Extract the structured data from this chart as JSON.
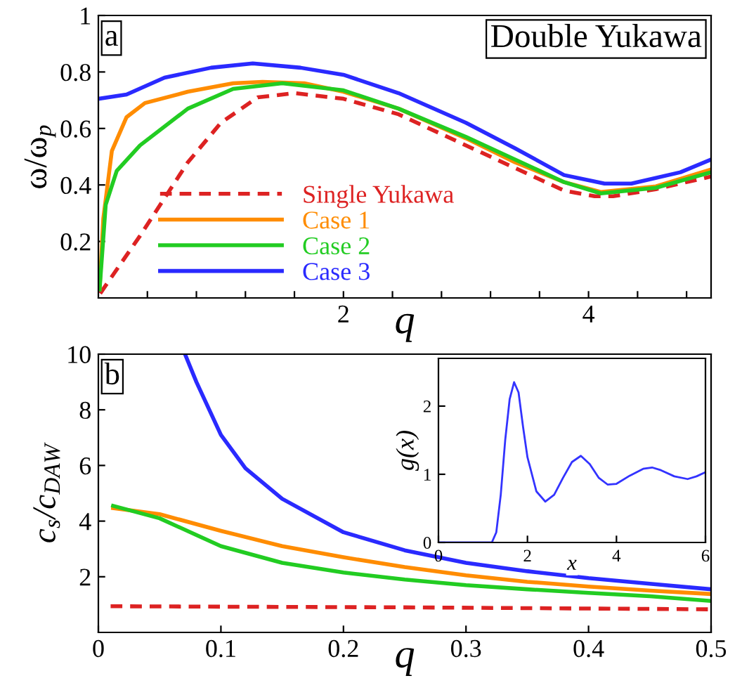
{
  "chart_data": [
    {
      "type": "line",
      "xlabel": "q",
      "ylabel": "ω/ω$_{p}$",
      "annotations": [
        "a",
        "Double Yukawa"
      ],
      "xlim": [
        0,
        5
      ],
      "ylim": [
        0,
        1
      ],
      "xticks": [
        {
          "value": 0.4,
          "label": null
        },
        {
          "value": 0.8,
          "label": null
        },
        {
          "value": 1.2,
          "label": null
        },
        {
          "value": 1.6,
          "label": null
        },
        2,
        {
          "value": 2.4,
          "label": null
        },
        {
          "value": 2.8,
          "label": null
        },
        {
          "value": 3.2,
          "label": null
        },
        {
          "value": 3.6,
          "label": null
        },
        4,
        {
          "value": 4.4,
          "label": null
        },
        {
          "value": 4.8,
          "label": null
        }
      ],
      "yticks": [
        0.2,
        0.4,
        0.6,
        0.8,
        1
      ],
      "legend": "bottom left",
      "grid": false,
      "series": [
        {
          "name": "Single Yukawa",
          "color": "#dd2222",
          "line_style": "dashed",
          "x": [
            0.015,
            0.34,
            0.73,
            1.0,
            1.3,
            1.6,
            2.0,
            2.45,
            3.0,
            3.4,
            3.8,
            4.05,
            4.2,
            4.55,
            5.0
          ],
          "values": [
            0.016,
            0.22,
            0.48,
            0.62,
            0.71,
            0.725,
            0.705,
            0.65,
            0.54,
            0.46,
            0.38,
            0.36,
            0.36,
            0.385,
            0.43
          ]
        },
        {
          "name": "Case 1",
          "color": "#ff8c00",
          "line_style": "solid",
          "x": [
            0.01,
            0.04,
            0.11,
            0.23,
            0.38,
            0.73,
            1.1,
            1.34,
            1.68,
            2.0,
            2.45,
            3.0,
            3.4,
            3.8,
            4.1,
            4.55,
            5.0
          ],
          "values": [
            0.03,
            0.28,
            0.52,
            0.64,
            0.69,
            0.73,
            0.76,
            0.765,
            0.76,
            0.73,
            0.67,
            0.565,
            0.48,
            0.41,
            0.375,
            0.395,
            0.455
          ]
        },
        {
          "name": "Case 2",
          "color": "#22cc22",
          "line_style": "solid",
          "x": [
            0.01,
            0.06,
            0.15,
            0.34,
            0.73,
            1.1,
            1.5,
            2.0,
            2.45,
            3.0,
            3.4,
            3.8,
            4.1,
            4.55,
            5.0
          ],
          "values": [
            0.03,
            0.33,
            0.45,
            0.54,
            0.67,
            0.74,
            0.76,
            0.735,
            0.67,
            0.57,
            0.49,
            0.41,
            0.37,
            0.39,
            0.445
          ]
        },
        {
          "name": "Case 3",
          "color": "#2a2aff",
          "line_style": "solid",
          "x": [
            0.0,
            0.23,
            0.54,
            0.92,
            1.26,
            1.65,
            2.0,
            2.45,
            3.0,
            3.4,
            3.8,
            4.13,
            4.35,
            4.75,
            5.0
          ],
          "values": [
            0.705,
            0.72,
            0.78,
            0.815,
            0.83,
            0.815,
            0.79,
            0.725,
            0.62,
            0.53,
            0.435,
            0.405,
            0.405,
            0.445,
            0.49
          ]
        }
      ]
    },
    {
      "type": "line",
      "xlabel": "q",
      "ylabel": "c$_{s}$/c$_{DAW}$",
      "annotations": [
        "b"
      ],
      "xlim": [
        0,
        0.5
      ],
      "ylim": [
        0,
        10
      ],
      "xticks": [
        0,
        0.1,
        0.2,
        0.3,
        0.4,
        0.5
      ],
      "yticks": [
        2,
        4,
        6,
        8,
        10
      ],
      "grid": false,
      "series": [
        {
          "color": "#dd2222",
          "line_style": "dashed",
          "x": [
            0.01,
            0.25,
            0.5
          ],
          "values": [
            0.94,
            0.9,
            0.83
          ]
        },
        {
          "color": "#ff8c00",
          "line_style": "solid",
          "x": [
            0.012,
            0.05,
            0.1,
            0.15,
            0.2,
            0.25,
            0.3,
            0.35,
            0.4,
            0.45,
            0.5
          ],
          "values": [
            4.47,
            4.25,
            3.65,
            3.1,
            2.7,
            2.35,
            2.05,
            1.82,
            1.65,
            1.5,
            1.38
          ]
        },
        {
          "color": "#22cc22",
          "line_style": "solid",
          "x": [
            0.012,
            0.05,
            0.1,
            0.15,
            0.2,
            0.25,
            0.3,
            0.35,
            0.4,
            0.45,
            0.5
          ],
          "values": [
            4.55,
            4.1,
            3.1,
            2.5,
            2.15,
            1.9,
            1.7,
            1.55,
            1.42,
            1.3,
            1.13
          ]
        },
        {
          "color": "#2a2aff",
          "line_style": "solid",
          "x": [
            0.0707,
            0.08,
            0.1,
            0.12,
            0.15,
            0.2,
            0.25,
            0.3,
            0.35,
            0.4,
            0.45,
            0.5
          ],
          "values": [
            10,
            9.0,
            7.1,
            5.9,
            4.8,
            3.6,
            2.95,
            2.5,
            2.2,
            1.95,
            1.75,
            1.55
          ]
        }
      ]
    },
    {
      "type": "line",
      "xlabel": "x",
      "ylabel": "g(x)",
      "xlim": [
        0,
        6
      ],
      "ylim": [
        0,
        2.7
      ],
      "xticks": [
        0,
        2,
        4,
        6
      ],
      "yticks": [
        0,
        1,
        2
      ],
      "grid": false,
      "series": [
        {
          "color": "#3333ff",
          "line_style": "solid",
          "x": [
            0,
            1.2,
            1.3,
            1.4,
            1.5,
            1.6,
            1.7,
            1.8,
            1.9,
            2.0,
            2.2,
            2.4,
            2.6,
            2.8,
            3.0,
            3.2,
            3.4,
            3.6,
            3.8,
            4.0,
            4.3,
            4.6,
            4.8,
            5.0,
            5.3,
            5.6,
            5.8,
            6.0
          ],
          "values": [
            0,
            0,
            0.15,
            0.7,
            1.5,
            2.1,
            2.35,
            2.2,
            1.7,
            1.25,
            0.75,
            0.6,
            0.7,
            0.95,
            1.18,
            1.27,
            1.15,
            0.95,
            0.85,
            0.86,
            0.98,
            1.08,
            1.1,
            1.06,
            0.97,
            0.93,
            0.97,
            1.03
          ]
        }
      ]
    }
  ]
}
